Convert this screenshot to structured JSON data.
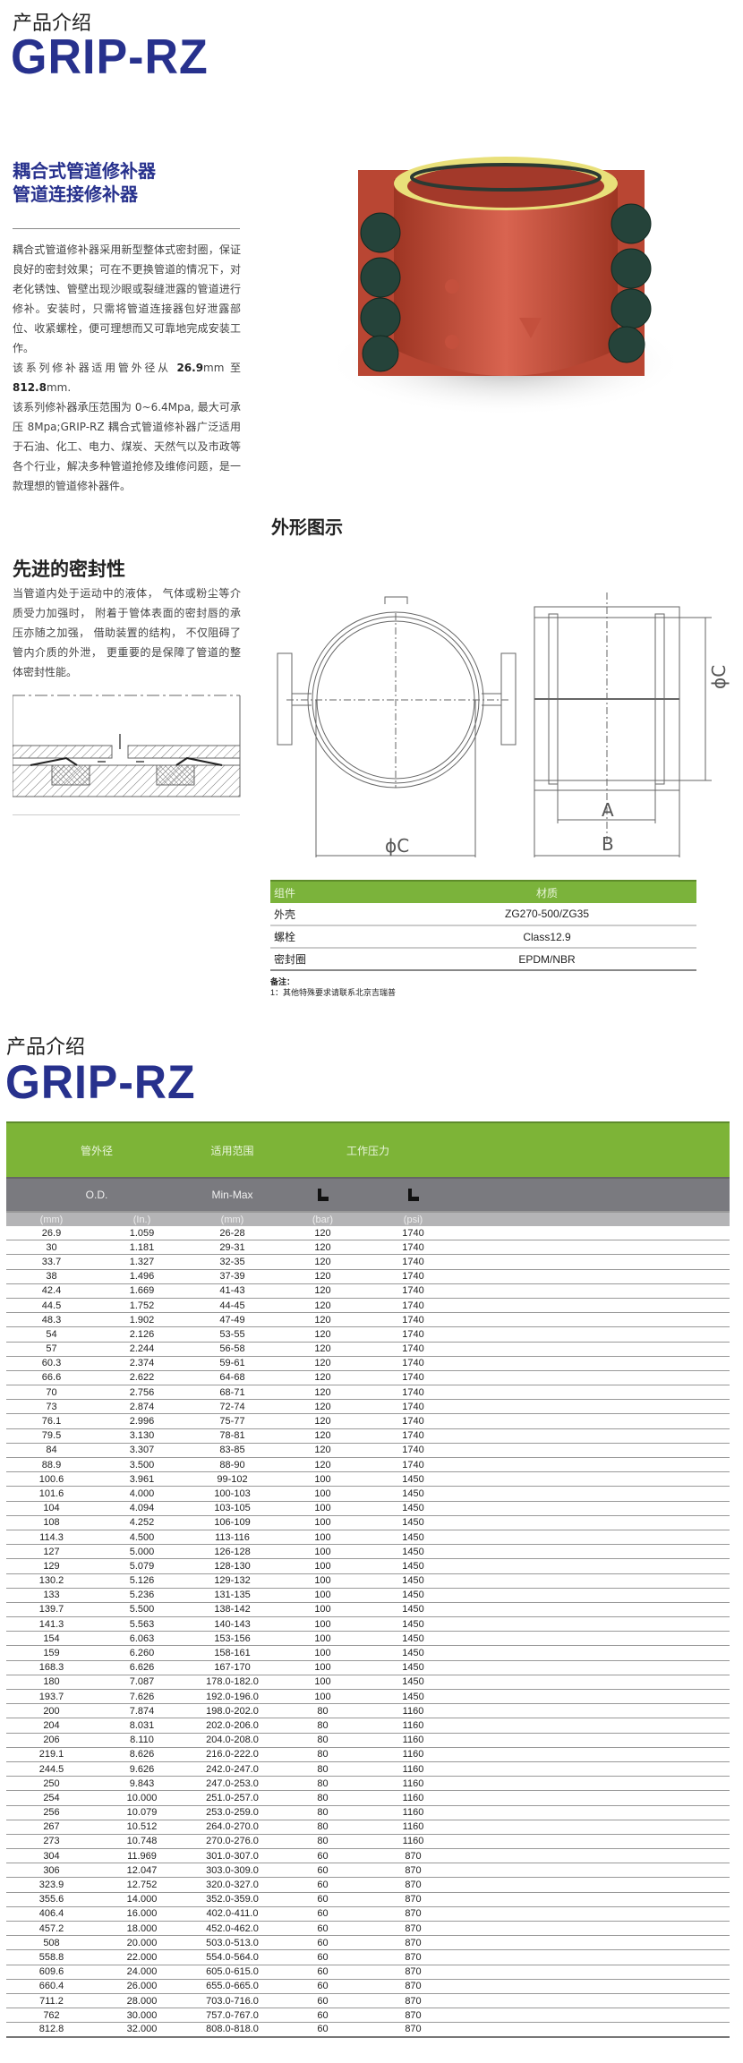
{
  "page1": {
    "kicker": "产品介绍",
    "brand": "GRIP-RZ",
    "subtitle_line1": "耦合式管道修补器",
    "subtitle_line2": "管道连接修补器",
    "intro_p1": "耦合式管道修补器采用新型整体式密封圈，保证良好的密封效果；可在不更换管道的情况下，对老化锈蚀、管壁出现沙眼或裂缝泄露的管道进行修补。安装时，只需将管道连接器包好泄露部位、收紧螺栓，便可理想而又可靠地完成安装工作。",
    "intro_p2_pre": "该系列修补器适用管外径从",
    "intro_p2_min": "26.9",
    "intro_p2_mid": "mm 至",
    "intro_p2_max": "812.8",
    "intro_p2_post": "mm.",
    "intro_p3": "该系列修补器承压范围为 0~6.4Mpa, 最大可承压 8Mpa;GRIP-RZ 耦合式管道修补器广泛适用于石油、化工、电力、煤炭、天然气以及市政等各个行业，解决多种管道抢修及维修问题，是一款理想的管道修补器件。",
    "seal_title": "先进的密封性",
    "seal_text": "当管道内处于运动中的液体， 气体或粉尘等介质受力加强时， 附着于管体表面的密封唇的承压亦随之加强， 借助装置的结构， 不仅阻碍了管内介质的外泄， 更重要的是保障了管道的整体密封性能。",
    "outline_title": "外形图示",
    "drawing_labels": {
      "c": "ϕC",
      "a": "A",
      "b": "B"
    },
    "materials": {
      "headers": [
        "组件",
        "材质"
      ],
      "rows": [
        {
          "part": "外壳",
          "material": "ZG270-500/ZG35"
        },
        {
          "part": "螺栓",
          "material": "Class12.9"
        },
        {
          "part": "密封圈",
          "material": "EPDM/NBR"
        }
      ]
    },
    "note_title": "备注：",
    "note_1": "1：其他特殊要求请联系北京吉瑞普"
  },
  "page2": {
    "kicker": "产品介绍",
    "brand": "GRIP-RZ",
    "header_cn": [
      "管外径",
      "适用范围",
      "工作压力"
    ],
    "header_en": [
      "O.D.",
      "Min-Max"
    ],
    "pressure_icon": "pressure-gauge-icon",
    "units": [
      "(mm)",
      "(In.)",
      "(mm)",
      "(bar)",
      "(psi)"
    ],
    "colors": {
      "green": "#7db437",
      "grey": "#7a7a7f",
      "brand": "#27318d"
    },
    "rows": [
      [
        "26.9",
        "1.059",
        "26-28",
        "120",
        "1740"
      ],
      [
        "30",
        "1.181",
        "29-31",
        "120",
        "1740"
      ],
      [
        "33.7",
        "1.327",
        "32-35",
        "120",
        "1740"
      ],
      [
        "38",
        "1.496",
        "37-39",
        "120",
        "1740"
      ],
      [
        "42.4",
        "1.669",
        "41-43",
        "120",
        "1740"
      ],
      [
        "44.5",
        "1.752",
        "44-45",
        "120",
        "1740"
      ],
      [
        "48.3",
        "1.902",
        "47-49",
        "120",
        "1740"
      ],
      [
        "54",
        "2.126",
        "53-55",
        "120",
        "1740"
      ],
      [
        "57",
        "2.244",
        "56-58",
        "120",
        "1740"
      ],
      [
        "60.3",
        "2.374",
        "59-61",
        "120",
        "1740"
      ],
      [
        "66.6",
        "2.622",
        "64-68",
        "120",
        "1740"
      ],
      [
        "70",
        "2.756",
        "68-71",
        "120",
        "1740"
      ],
      [
        "73",
        "2.874",
        "72-74",
        "120",
        "1740"
      ],
      [
        "76.1",
        "2.996",
        "75-77",
        "120",
        "1740"
      ],
      [
        "79.5",
        "3.130",
        "78-81",
        "120",
        "1740"
      ],
      [
        "84",
        "3.307",
        "83-85",
        "120",
        "1740"
      ],
      [
        "88.9",
        "3.500",
        "88-90",
        "120",
        "1740"
      ],
      [
        "100.6",
        "3.961",
        "99-102",
        "100",
        "1450"
      ],
      [
        "101.6",
        "4.000",
        "100-103",
        "100",
        "1450"
      ],
      [
        "104",
        "4.094",
        "103-105",
        "100",
        "1450"
      ],
      [
        "108",
        "4.252",
        "106-109",
        "100",
        "1450"
      ],
      [
        "114.3",
        "4.500",
        "113-116",
        "100",
        "1450"
      ],
      [
        "127",
        "5.000",
        "126-128",
        "100",
        "1450"
      ],
      [
        "129",
        "5.079",
        "128-130",
        "100",
        "1450"
      ],
      [
        "130.2",
        "5.126",
        "129-132",
        "100",
        "1450"
      ],
      [
        "133",
        "5.236",
        "131-135",
        "100",
        "1450"
      ],
      [
        "139.7",
        "5.500",
        "138-142",
        "100",
        "1450"
      ],
      [
        "141.3",
        "5.563",
        "140-143",
        "100",
        "1450"
      ],
      [
        "154",
        "6.063",
        "153-156",
        "100",
        "1450"
      ],
      [
        "159",
        "6.260",
        "158-161",
        "100",
        "1450"
      ],
      [
        "168.3",
        "6.626",
        "167-170",
        "100",
        "1450"
      ],
      [
        "180",
        "7.087",
        "178.0-182.0",
        "100",
        "1450"
      ],
      [
        "193.7",
        "7.626",
        "192.0-196.0",
        "100",
        "1450"
      ],
      [
        "200",
        "7.874",
        "198.0-202.0",
        "80",
        "1160"
      ],
      [
        "204",
        "8.031",
        "202.0-206.0",
        "80",
        "1160"
      ],
      [
        "206",
        "8.110",
        "204.0-208.0",
        "80",
        "1160"
      ],
      [
        "219.1",
        "8.626",
        "216.0-222.0",
        "80",
        "1160"
      ],
      [
        "244.5",
        "9.626",
        "242.0-247.0",
        "80",
        "1160"
      ],
      [
        "250",
        "9.843",
        "247.0-253.0",
        "80",
        "1160"
      ],
      [
        "254",
        "10.000",
        "251.0-257.0",
        "80",
        "1160"
      ],
      [
        "256",
        "10.079",
        "253.0-259.0",
        "80",
        "1160"
      ],
      [
        "267",
        "10.512",
        "264.0-270.0",
        "80",
        "1160"
      ],
      [
        "273",
        "10.748",
        "270.0-276.0",
        "80",
        "1160"
      ],
      [
        "304",
        "11.969",
        "301.0-307.0",
        "60",
        "870"
      ],
      [
        "306",
        "12.047",
        "303.0-309.0",
        "60",
        "870"
      ],
      [
        "323.9",
        "12.752",
        "320.0-327.0",
        "60",
        "870"
      ],
      [
        "355.6",
        "14.000",
        "352.0-359.0",
        "60",
        "870"
      ],
      [
        "406.4",
        "16.000",
        "402.0-411.0",
        "60",
        "870"
      ],
      [
        "457.2",
        "18.000",
        "452.0-462.0",
        "60",
        "870"
      ],
      [
        "508",
        "20.000",
        "503.0-513.0",
        "60",
        "870"
      ],
      [
        "558.8",
        "22.000",
        "554.0-564.0",
        "60",
        "870"
      ],
      [
        "609.6",
        "24.000",
        "605.0-615.0",
        "60",
        "870"
      ],
      [
        "660.4",
        "26.000",
        "655.0-665.0",
        "60",
        "870"
      ],
      [
        "711.2",
        "28.000",
        "703.0-716.0",
        "60",
        "870"
      ],
      [
        "762",
        "30.000",
        "757.0-767.0",
        "60",
        "870"
      ],
      [
        "812.8",
        "32.000",
        "808.0-818.0",
        "60",
        "870"
      ]
    ]
  }
}
